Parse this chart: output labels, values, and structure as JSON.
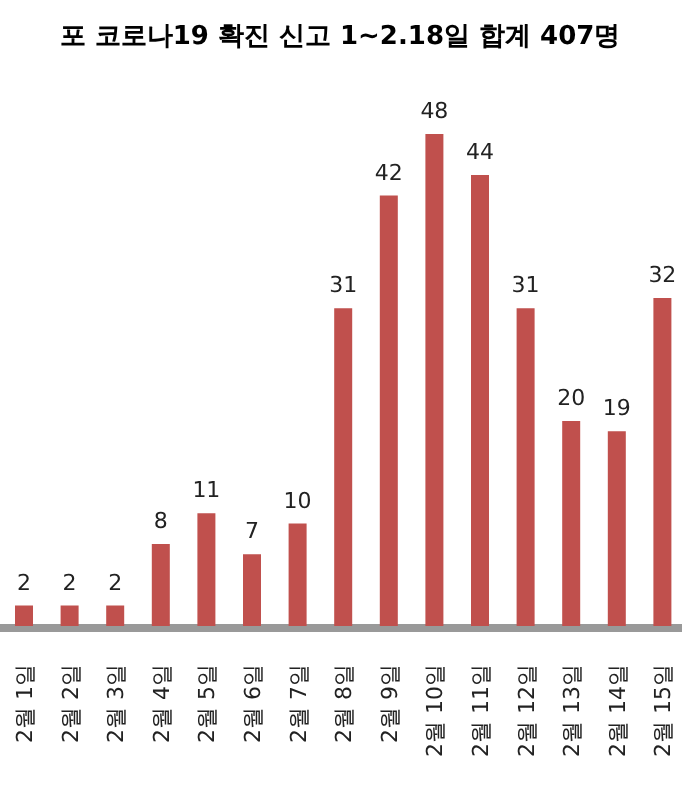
{
  "chart_data": {
    "type": "bar",
    "title": "포 코로나19 확진 신고 1~2.18일 합계 407명",
    "categories": [
      "2월 1일",
      "2월 2일",
      "2월 3일",
      "2월 4일",
      "2월 5일",
      "2월 6일",
      "2월 7일",
      "2월 8일",
      "2월 9일",
      "2월 10일",
      "2월 11일",
      "2월 12일",
      "2월 13일",
      "2월 14일",
      "2월 15일"
    ],
    "values": [
      2,
      2,
      2,
      8,
      11,
      7,
      10,
      31,
      42,
      48,
      44,
      31,
      20,
      19,
      32
    ],
    "color": "#c0504d",
    "data_labels": true
  }
}
